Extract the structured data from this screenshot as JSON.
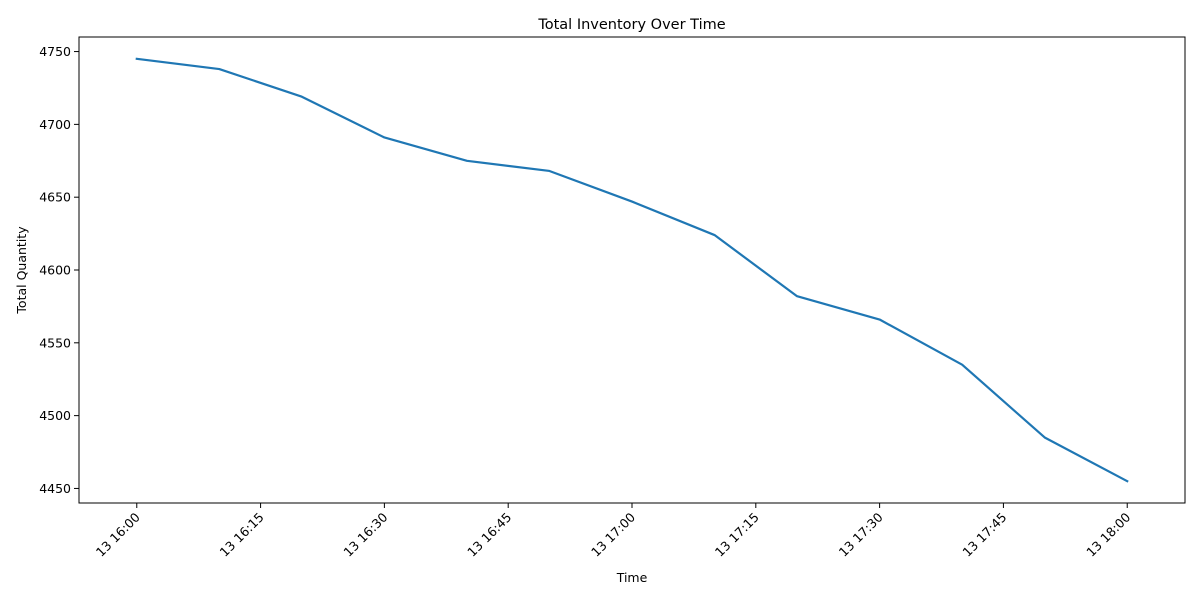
{
  "chart_data": {
    "type": "line",
    "title": "Total Inventory Over Time",
    "xlabel": "Time",
    "ylabel": "Total Quantity",
    "x_tick_labels": [
      "13 16:00",
      "13 16:15",
      "13 16:30",
      "13 16:45",
      "13 17:00",
      "13 17:15",
      "13 17:30",
      "13 17:45",
      "13 18:00"
    ],
    "y_ticks": [
      4450,
      4500,
      4550,
      4600,
      4650,
      4700,
      4750
    ],
    "ylim": [
      4440,
      4760
    ],
    "xlim": [
      "13 15:53",
      "13 18:07"
    ],
    "grid": false,
    "series": [
      {
        "color": "#1f77b4",
        "x": [
          "13 16:00",
          "13 16:10",
          "13 16:20",
          "13 16:30",
          "13 16:40",
          "13 16:50",
          "13 17:00",
          "13 17:10",
          "13 17:20",
          "13 17:30",
          "13 17:40",
          "13 17:50",
          "13 18:00"
        ],
        "values": [
          4745,
          4738,
          4719,
          4691,
          4675,
          4668,
          4647,
          4624,
          4582,
          4566,
          4535,
          4485,
          4455
        ]
      }
    ]
  }
}
